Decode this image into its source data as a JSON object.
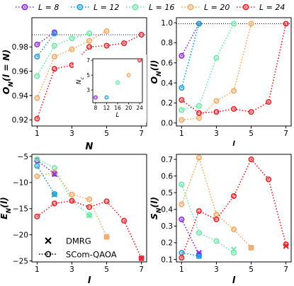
{
  "legend": [
    {
      "label": "L = 8",
      "color": "#8a2be2"
    },
    {
      "label": "L = 12",
      "color": "#1fa0d6"
    },
    {
      "label": "L = 16",
      "color": "#6ee7a6"
    },
    {
      "label": "L = 20",
      "color": "#f4a861"
    },
    {
      "label": "L = 24",
      "color": "#e0262a"
    }
  ],
  "chart_data": [
    {
      "id": "A",
      "type": "line",
      "xlabel": "N",
      "ylabel": "O_N(l = N)",
      "xlim": [
        0.7,
        7.3
      ],
      "ylim": [
        0.915,
        1.004
      ],
      "xticks": [
        1,
        3,
        5,
        7
      ],
      "yticks": [
        0.92,
        0.94,
        0.96,
        0.98
      ],
      "ytick_labels": [
        "0.92",
        "0.94",
        "0.96",
        "0.98"
      ],
      "hline": 0.99,
      "series": [
        {
          "name": "L = 8",
          "color": "#8a2be2",
          "x": [
            1,
            2
          ],
          "y": [
            0.982,
            0.992
          ]
        },
        {
          "name": "L = 12",
          "color": "#1fa0d6",
          "x": [
            1,
            2
          ],
          "y": [
            0.972,
            0.991
          ]
        },
        {
          "name": "L = 16",
          "color": "#6ee7a6",
          "x": [
            1,
            2,
            3,
            4
          ],
          "y": [
            0.956,
            0.981,
            0.987,
            0.991
          ]
        },
        {
          "name": "L = 20",
          "color": "#f4a861",
          "x": [
            1,
            2,
            3,
            4,
            5
          ],
          "y": [
            0.938,
            0.972,
            0.978,
            0.985,
            0.993
          ]
        },
        {
          "name": "L = 24",
          "color": "#e0262a",
          "x": [
            1,
            2,
            3,
            4,
            5,
            6,
            7
          ],
          "y": [
            0.921,
            0.962,
            0.965,
            0.98,
            0.981,
            0.983,
            0.99
          ]
        }
      ],
      "inset": {
        "xlabel": "L",
        "ylabel": "N_c",
        "xlim": [
          7,
          25
        ],
        "ylim": [
          1.3,
          7.2
        ],
        "xticks": [
          8,
          12,
          16,
          20,
          24
        ],
        "yticks": [
          3,
          5,
          7
        ],
        "points": [
          {
            "x": 8,
            "y": 2,
            "color": "#8a2be2"
          },
          {
            "x": 12,
            "y": 2,
            "color": "#1fa0d6"
          },
          {
            "x": 16,
            "y": 4,
            "color": "#6ee7a6"
          },
          {
            "x": 20,
            "y": 5,
            "color": "#f4a861"
          },
          {
            "x": 24,
            "y": 7,
            "color": "#e0262a"
          }
        ]
      }
    },
    {
      "id": "B",
      "type": "line",
      "xlabel": "l",
      "ylabel": "O_N(l)",
      "xlim": [
        0.7,
        7.3
      ],
      "ylim": [
        -0.03,
        1.05
      ],
      "xticks": [
        1,
        3,
        5,
        7
      ],
      "yticks": [
        0.0,
        0.2,
        0.4,
        0.6,
        0.8,
        1.0
      ],
      "ytick_labels": [
        "0.0",
        "0.2",
        "0.4",
        "0.6",
        "0.8",
        "1.0"
      ],
      "hline": 0.99,
      "series": [
        {
          "name": "L = 8",
          "color": "#8a2be2",
          "x": [
            1,
            2
          ],
          "y": [
            0.67,
            0.99
          ]
        },
        {
          "name": "L = 12",
          "color": "#1fa0d6",
          "x": [
            1,
            2
          ],
          "y": [
            0.35,
            0.99
          ]
        },
        {
          "name": "L = 16",
          "color": "#6ee7a6",
          "x": [
            1,
            2,
            3,
            4
          ],
          "y": [
            0.13,
            0.17,
            0.65,
            0.99
          ]
        },
        {
          "name": "L = 20",
          "color": "#f4a861",
          "x": [
            1,
            2,
            3,
            4,
            5
          ],
          "y": [
            0.03,
            0.05,
            0.22,
            0.32,
            0.99
          ]
        },
        {
          "name": "L = 24",
          "color": "#e0262a",
          "x": [
            1,
            2,
            3,
            4,
            5,
            6,
            7
          ],
          "y": [
            0.23,
            0.1,
            0.11,
            0.14,
            0.11,
            0.21,
            0.99
          ]
        }
      ]
    },
    {
      "id": "C",
      "type": "line",
      "xlabel": "l",
      "ylabel": "E_N(l)",
      "xlim": [
        0.7,
        7.3
      ],
      "ylim": [
        -25.2,
        -4.6
      ],
      "xticks": [
        1,
        3,
        5,
        7
      ],
      "yticks": [
        -5,
        -10,
        -15,
        -20,
        -25
      ],
      "ytick_labels": [
        "−5",
        "−10",
        "−15",
        "−20",
        "−25"
      ],
      "series": [
        {
          "name": "L = 8",
          "color": "#8a2be2",
          "x": [
            1,
            2
          ],
          "y": [
            -5.8,
            -8.3
          ]
        },
        {
          "name": "L = 12",
          "color": "#1fa0d6",
          "x": [
            1,
            2
          ],
          "y": [
            -6.8,
            -12.2
          ]
        },
        {
          "name": "L = 16",
          "color": "#6ee7a6",
          "x": [
            1,
            2,
            3,
            4
          ],
          "y": [
            -5.5,
            -7.2,
            -13.5,
            -16.2
          ]
        },
        {
          "name": "L = 20",
          "color": "#f4a861",
          "x": [
            1,
            2,
            3,
            4,
            5
          ],
          "y": [
            -8.8,
            -8.1,
            -12.3,
            -13.2,
            -20.4
          ]
        },
        {
          "name": "L = 24",
          "color": "#e0262a",
          "x": [
            1,
            2,
            3,
            4,
            5,
            6,
            7
          ],
          "y": [
            -16.5,
            -14.0,
            -13.5,
            -14.7,
            -13.6,
            -17.3,
            -24.5
          ]
        }
      ],
      "dmrg": [
        {
          "x": 2,
          "y": -8.4,
          "color": "#8a2be2"
        },
        {
          "x": 2,
          "y": -12.3,
          "color": "#1fa0d6"
        },
        {
          "x": 4,
          "y": -16.3,
          "color": "#6ee7a6"
        },
        {
          "x": 5,
          "y": -20.4,
          "color": "#f4a861"
        },
        {
          "x": 7,
          "y": -24.5,
          "color": "#e0262a"
        }
      ],
      "legend": [
        {
          "label": "DMRG",
          "marker": "x"
        },
        {
          "label": "SCom-QAOA",
          "marker": "o-dotted"
        }
      ]
    },
    {
      "id": "D",
      "type": "line",
      "xlabel": "l",
      "ylabel": "S_N(l)",
      "xlim": [
        0.7,
        7.3
      ],
      "ylim": [
        0.085,
        0.73
      ],
      "xticks": [
        1,
        3,
        5,
        7
      ],
      "yticks": [
        0.1,
        0.2,
        0.3,
        0.4,
        0.5,
        0.6,
        0.7
      ],
      "ytick_labels": [
        "0.1",
        "0.2",
        "0.3",
        "0.4",
        "0.5",
        "0.6",
        "0.7"
      ],
      "series": [
        {
          "name": "L = 8",
          "color": "#8a2be2",
          "x": [
            1,
            2
          ],
          "y": [
            0.34,
            0.13
          ]
        },
        {
          "name": "L = 12",
          "color": "#1fa0d6",
          "x": [
            1,
            2
          ],
          "y": [
            0.14,
            0.12
          ]
        },
        {
          "name": "L = 16",
          "color": "#6ee7a6",
          "x": [
            1,
            2,
            3,
            4
          ],
          "y": [
            0.55,
            0.26,
            0.21,
            0.14
          ]
        },
        {
          "name": "L = 20",
          "color": "#f4a861",
          "x": [
            1,
            2,
            3,
            4,
            5
          ],
          "y": [
            0.43,
            0.71,
            0.37,
            0.28,
            0.17
          ]
        },
        {
          "name": "L = 24",
          "color": "#e0262a",
          "x": [
            1,
            2,
            3,
            4,
            5,
            6,
            7
          ],
          "y": [
            0.11,
            0.39,
            0.34,
            0.48,
            0.7,
            0.58,
            0.19
          ]
        }
      ],
      "dmrg": [
        {
          "x": 2,
          "y": 0.14,
          "color": "#8a2be2"
        },
        {
          "x": 2,
          "y": 0.12,
          "color": "#1fa0d6"
        },
        {
          "x": 4,
          "y": 0.16,
          "color": "#6ee7a6"
        },
        {
          "x": 5,
          "y": 0.17,
          "color": "#f4a861"
        },
        {
          "x": 7,
          "y": 0.18,
          "color": "#e0262a"
        }
      ]
    }
  ]
}
